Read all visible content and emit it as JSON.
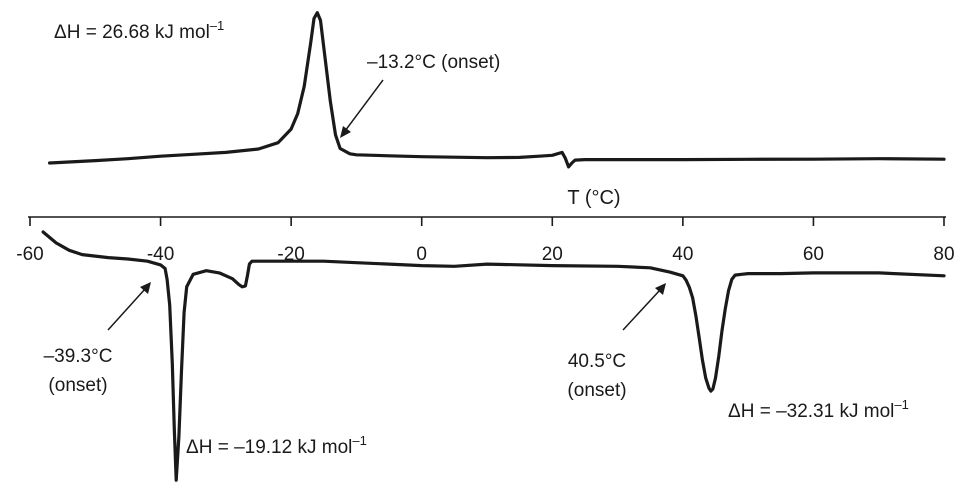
{
  "chart_data": {
    "type": "line",
    "xlabel": "T (°C)",
    "ylabel": "",
    "xlim": [
      -60,
      80
    ],
    "x_ticks": [
      -60,
      -40,
      -20,
      0,
      20,
      40,
      60,
      80
    ],
    "grid": false,
    "legend": "none",
    "series": [
      {
        "key": "cooling",
        "x": [
          -57,
          -50,
          -45,
          -40,
          -35,
          -30,
          -25,
          -22,
          -20,
          -19,
          -18,
          -17,
          -16.5,
          -16,
          -15.5,
          -15,
          -14,
          -13.2,
          -12.5,
          -11,
          -10,
          -5,
          0,
          5,
          10,
          15,
          18,
          20,
          21.5,
          22,
          22.5,
          23,
          23.5,
          25,
          30,
          40,
          50,
          60,
          70,
          80
        ],
        "y": [
          0.1,
          0.35,
          0.55,
          0.8,
          1.0,
          1.2,
          1.55,
          2.2,
          3.6,
          5.2,
          8.0,
          12.5,
          15.0,
          15.6,
          14.8,
          12.0,
          6.5,
          3.0,
          1.6,
          1.05,
          0.95,
          0.85,
          0.75,
          0.7,
          0.65,
          0.68,
          0.8,
          0.9,
          1.2,
          0.6,
          -0.3,
          0.1,
          0.4,
          0.45,
          0.45,
          0.45,
          0.48,
          0.5,
          0.55,
          0.5
        ]
      },
      {
        "key": "heating",
        "x": [
          -58,
          -56,
          -54,
          -52,
          -50,
          -48,
          -45,
          -42,
          -40,
          -39.3,
          -39,
          -38.6,
          -38.2,
          -37.9,
          -37.6,
          -37.2,
          -36.8,
          -36.4,
          -36,
          -35,
          -33,
          -31,
          -29,
          -28,
          -27.5,
          -27,
          -26.7,
          -26.4,
          -26,
          -25,
          -20,
          -15,
          -10,
          -5,
          0,
          5,
          10,
          20,
          30,
          35,
          38,
          40,
          40.5,
          41,
          41.5,
          42,
          42.5,
          43,
          43.5,
          44,
          44.3,
          44.6,
          45,
          45.5,
          46,
          46.5,
          47,
          47.5,
          48,
          49,
          50,
          55,
          60,
          70,
          80
        ],
        "y": [
          0,
          -1.5,
          -2.5,
          -3.1,
          -3.3,
          -3.5,
          -3.7,
          -4.0,
          -4.5,
          -5.0,
          -6.5,
          -10,
          -18,
          -27,
          -34,
          -28,
          -19,
          -11,
          -7.5,
          -5.8,
          -5.3,
          -5.6,
          -6.4,
          -7.2,
          -7.5,
          -7.4,
          -6.0,
          -4.4,
          -4.0,
          -4.0,
          -4.0,
          -4.0,
          -4.2,
          -4.4,
          -4.6,
          -4.7,
          -4.4,
          -4.6,
          -4.7,
          -4.9,
          -5.5,
          -6.0,
          -6.6,
          -7.6,
          -9.0,
          -11.5,
          -14.5,
          -17.5,
          -20.0,
          -21.4,
          -21.8,
          -21.5,
          -20.0,
          -17.0,
          -13.5,
          -10.5,
          -8.0,
          -6.5,
          -5.9,
          -5.8,
          -5.7,
          -5.7,
          -5.6,
          -5.6,
          -6.0
        ]
      }
    ],
    "annotations": {
      "cooling_enthalpy": "ΔH = 26.68 kJ mol",
      "cooling_onset": "–13.2°C (onset)",
      "low_onset_value": "–39.3°C",
      "low_onset_word": "(onset)",
      "low_enthalpy": "ΔH = –19.12 kJ mol",
      "high_onset_value": "40.5°C",
      "high_onset_word": "(onset)",
      "high_enthalpy": "ΔH = –32.31 kJ mol",
      "unit_exponent": "–1"
    }
  }
}
